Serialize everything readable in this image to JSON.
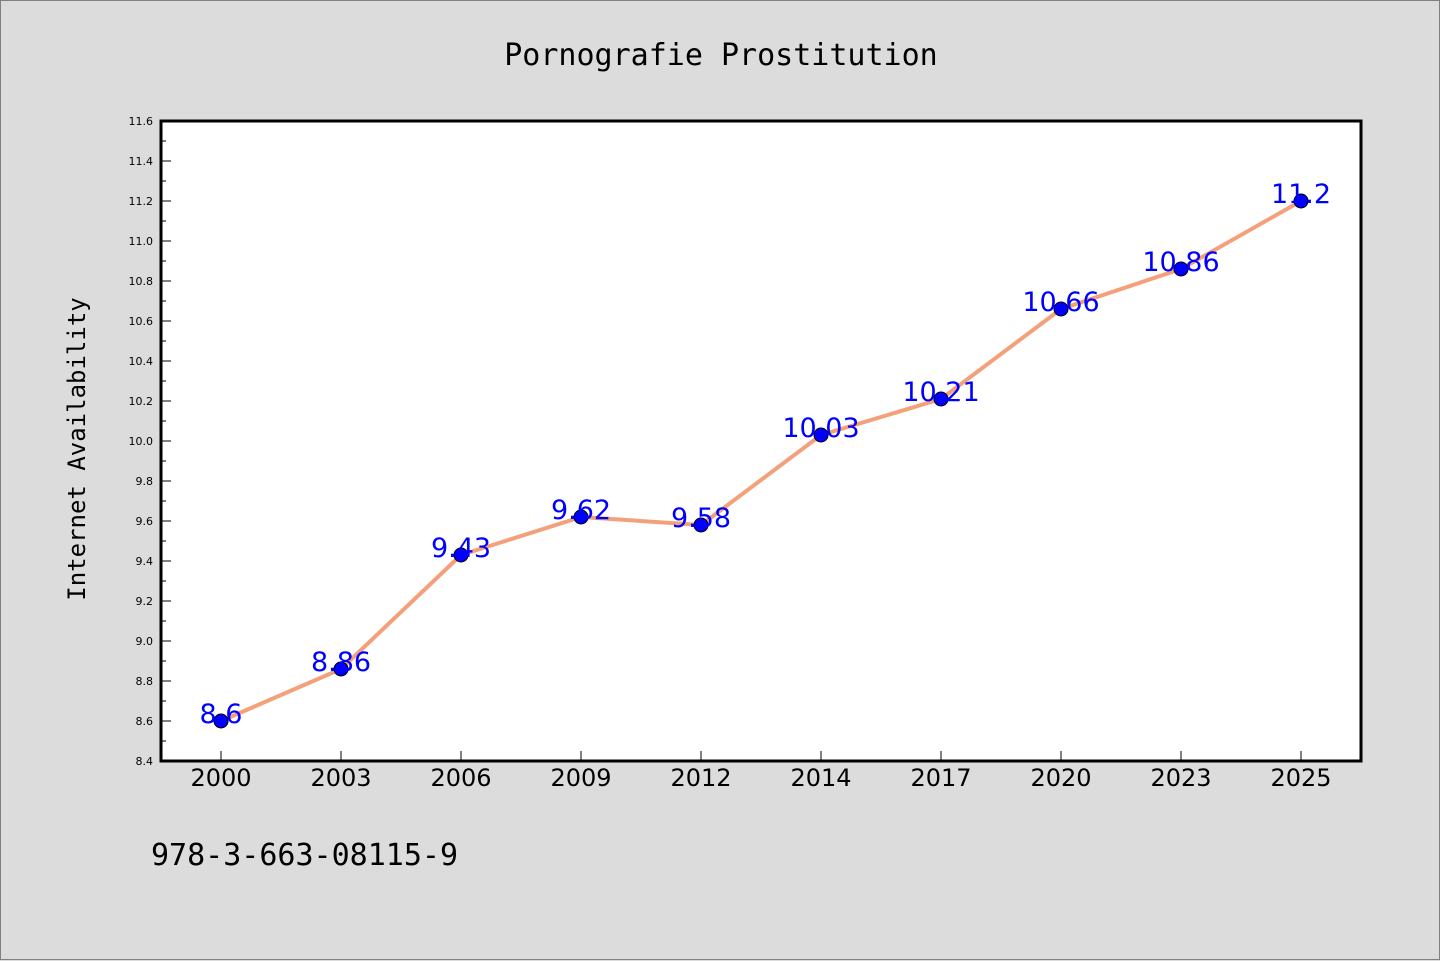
{
  "chart_data": {
    "type": "line",
    "title": "Pornografie Prostitution",
    "xlabel": "",
    "ylabel": "Internet Availability",
    "categories": [
      "2000",
      "2003",
      "2006",
      "2009",
      "2012",
      "2014",
      "2017",
      "2020",
      "2023",
      "2025"
    ],
    "series": [
      {
        "values": [
          8.6,
          8.86,
          9.43,
          9.62,
          9.58,
          10.03,
          10.21,
          10.66,
          10.86,
          11.2
        ],
        "labels": [
          "8.6",
          "8.86",
          "9.43",
          "9.62",
          "9.58",
          "10.03",
          "10.21",
          "10.66",
          "10.86",
          "11.2"
        ]
      }
    ],
    "ylim": [
      8.4,
      11.6
    ],
    "yticks": [
      "8.4",
      "8.6",
      "8.8",
      "9.0",
      "9.2",
      "9.4",
      "9.6",
      "9.8",
      "10.0",
      "10.2",
      "10.4",
      "10.6",
      "10.8",
      "11.0",
      "11.2",
      "11.4",
      "11.6"
    ],
    "grid": false,
    "line_color": "#f4a07a",
    "marker_color": "#0000ff",
    "label_color": "#0000ff"
  },
  "footer": {
    "isbn": "978-3-663-08115-9"
  }
}
